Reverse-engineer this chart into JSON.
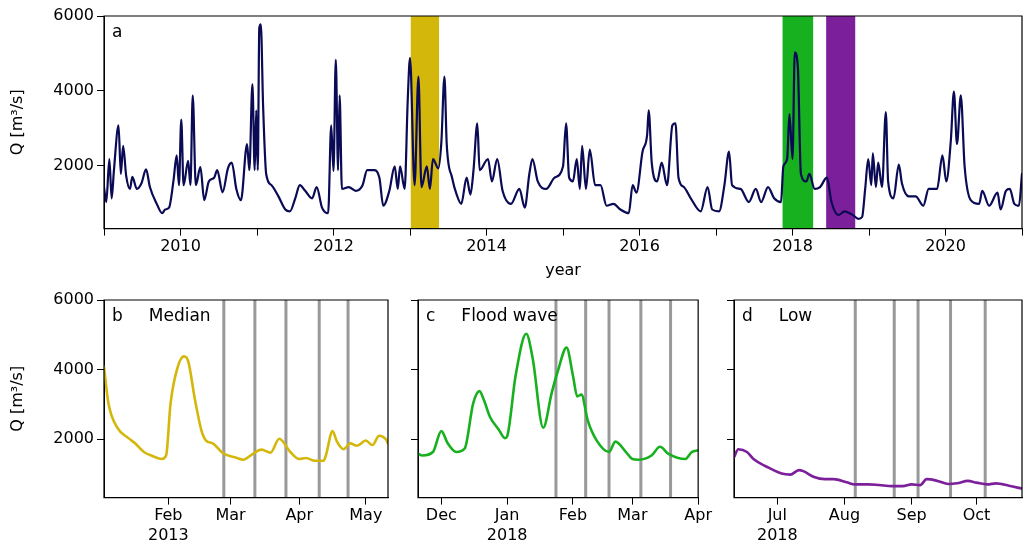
{
  "chart_data": [
    {
      "type": "line",
      "xlabel": "year",
      "ylabel": "Q [m³/s]",
      "annotations": [
        "a"
      ],
      "xlim": [
        2009,
        2021
      ],
      "xticks": [
        {
          "value": 2009,
          "label": null
        },
        2010,
        {
          "value": 2011,
          "label": null
        },
        2012,
        {
          "value": 2013,
          "label": null
        },
        2014,
        {
          "value": 2015,
          "label": null
        },
        2016,
        {
          "value": 2017,
          "label": null
        },
        2018,
        {
          "value": 2019,
          "label": null
        },
        2020,
        {
          "value": 2021,
          "label": null
        }
      ],
      "ylim": [
        320,
        6000
      ],
      "yticks": [
        2000,
        4000,
        6000
      ],
      "grid": false,
      "legend": false,
      "bands": [
        {
          "axis": "x",
          "from": 2013.01,
          "to": 2013.38,
          "color": "#d4b70b"
        },
        {
          "axis": "x",
          "from": 2017.87,
          "to": 2018.27,
          "color": "#17b01f"
        },
        {
          "axis": "x",
          "from": 2018.44,
          "to": 2018.82,
          "color": "#7b1f9a"
        }
      ],
      "series": [
        {
          "color": "#0a0a55",
          "x": [
            2009.0,
            2009.03,
            2009.07,
            2009.1,
            2009.13,
            2009.19,
            2009.22,
            2009.25,
            2009.29,
            2009.34,
            2009.37,
            2009.43,
            2009.49,
            2009.55,
            2009.6,
            2009.69,
            2009.76,
            2009.8,
            2009.85,
            2009.91,
            2009.95,
            2009.98,
            2010.01,
            2010.04,
            2010.1,
            2010.13,
            2010.16,
            2010.2,
            2010.26,
            2010.31,
            2010.37,
            2010.44,
            2010.48,
            2010.55,
            2010.62,
            2010.67,
            2010.73,
            2010.79,
            2010.87,
            2010.9,
            2010.94,
            2010.97,
            2010.99,
            2011.01,
            2011.03,
            2011.05,
            2011.08,
            2011.12,
            2011.19,
            2011.28,
            2011.37,
            2011.43,
            2011.5,
            2011.56,
            2011.63,
            2011.72,
            2011.78,
            2011.85,
            2011.93,
            2011.97,
            2012.0,
            2012.03,
            2012.06,
            2012.08,
            2012.11,
            2012.2,
            2012.29,
            2012.38,
            2012.44,
            2012.53,
            2012.6,
            2012.65,
            2012.73,
            2012.8,
            2012.84,
            2012.87,
            2012.93,
            2012.97,
            2013.0,
            2013.06,
            2013.11,
            2013.15,
            2013.22,
            2013.26,
            2013.3,
            2013.37,
            2013.41,
            2013.45,
            2013.48,
            2013.55,
            2013.61,
            2013.67,
            2013.74,
            2013.79,
            2013.83,
            2013.88,
            2013.91,
            2014.02,
            2014.07,
            2014.14,
            2014.21,
            2014.32,
            2014.43,
            2014.5,
            2014.56,
            2014.6,
            2014.67,
            2014.78,
            2014.89,
            2015.0,
            2015.04,
            2015.08,
            2015.13,
            2015.18,
            2015.22,
            2015.25,
            2015.3,
            2015.35,
            2015.42,
            2015.49,
            2015.57,
            2015.66,
            2015.75,
            2015.86,
            2015.91,
            2015.96,
            2016.04,
            2016.1,
            2016.12,
            2016.16,
            2016.23,
            2016.29,
            2016.36,
            2016.43,
            2016.47,
            2016.51,
            2016.58,
            2016.67,
            2016.8,
            2016.89,
            2016.95,
            2017.04,
            2017.11,
            2017.17,
            2017.21,
            2017.32,
            2017.43,
            2017.52,
            2017.59,
            2017.68,
            2017.76,
            2017.85,
            2017.88,
            2017.93,
            2017.96,
            2018.0,
            2018.03,
            2018.07,
            2018.11,
            2018.18,
            2018.22,
            2018.29,
            2018.36,
            2018.45,
            2018.51,
            2018.6,
            2018.68,
            2018.79,
            2018.86,
            2018.91,
            2018.95,
            2018.99,
            2019.03,
            2019.05,
            2019.09,
            2019.12,
            2019.17,
            2019.22,
            2019.25,
            2019.32,
            2019.39,
            2019.43,
            2019.52,
            2019.61,
            2019.71,
            2019.78,
            2019.89,
            2019.96,
            2020.01,
            2020.07,
            2020.11,
            2020.15,
            2020.2,
            2020.25,
            2020.33,
            2020.44,
            2020.48,
            2020.57,
            2020.68,
            2020.72,
            2020.79,
            2020.84,
            2020.9,
            2020.96,
            2021.0
          ],
          "values": [
            1430,
            1030,
            2180,
            1130,
            1880,
            3080,
            1780,
            2530,
            1730,
            1380,
            1700,
            1380,
            1530,
            1900,
            1430,
            980,
            730,
            830,
            880,
            1630,
            2280,
            1480,
            3230,
            1480,
            2130,
            1480,
            3880,
            1480,
            1960,
            1080,
            1580,
            1680,
            1880,
            1290,
            1930,
            2080,
            1380,
            1080,
            2580,
            1880,
            4180,
            1880,
            3480,
            1880,
            5680,
            5780,
            3580,
            1780,
            1480,
            1180,
            830,
            780,
            1130,
            1480,
            1330,
            1130,
            1430,
            880,
            730,
            3080,
            1860,
            4830,
            1880,
            3880,
            1380,
            1430,
            1330,
            1480,
            1880,
            1880,
            1680,
            930,
            1330,
            1980,
            1380,
            1980,
            1380,
            3730,
            4880,
            1480,
            4380,
            1430,
            1980,
            1380,
            2180,
            1930,
            2630,
            4380,
            2580,
            1680,
            1230,
            980,
            1680,
            1230,
            1880,
            3130,
            1880,
            2180,
            1580,
            2180,
            1330,
            980,
            1380,
            880,
            1780,
            2180,
            1580,
            1380,
            1680,
            1980,
            3130,
            1680,
            1580,
            2180,
            1380,
            2530,
            1380,
            2430,
            1480,
            1480,
            930,
            980,
            830,
            730,
            1480,
            1280,
            2380,
            2830,
            3480,
            2080,
            1580,
            2080,
            1480,
            3080,
            3130,
            1680,
            1430,
            1130,
            780,
            1430,
            830,
            780,
            1480,
            2380,
            1480,
            1380,
            1030,
            1380,
            1030,
            1430,
            1130,
            1030,
            1980,
            2180,
            3380,
            2180,
            5030,
            4630,
            1780,
            1580,
            1780,
            1380,
            1430,
            1680,
            1030,
            680,
            780,
            680,
            580,
            630,
            1380,
            2180,
            1480,
            2330,
            1430,
            2080,
            1430,
            3430,
            1580,
            1130,
            2030,
            1530,
            1180,
            1180,
            930,
            1380,
            1380,
            2280,
            1580,
            2680,
            3980,
            2580,
            3880,
            1980,
            1080,
            980,
            1330,
            930,
            1280,
            830,
            1330,
            1380,
            980,
            930,
            1780
          ]
        }
      ]
    },
    {
      "type": "line",
      "ylabel": "Q [m³/s]",
      "annotations": [
        "b",
        "Median"
      ],
      "xlim": [
        "2013-01-03",
        "2013-05-11"
      ],
      "xticks": [
        {
          "value": "2013-02-01",
          "label": "Feb\n2013"
        },
        {
          "value": "2013-03-01",
          "label": "Mar"
        },
        {
          "value": "2013-04-01",
          "label": "Apr"
        },
        {
          "value": "2013-05-01",
          "label": "May"
        }
      ],
      "ylim": [
        320,
        6000
      ],
      "yticks": [
        2000,
        4000,
        6000
      ],
      "grid": false,
      "legend": false,
      "ref_lines": [
        {
          "axis": "x",
          "value": "2013-02-26",
          "color": "#999999"
        },
        {
          "axis": "x",
          "value": "2013-03-12",
          "color": "#999999"
        },
        {
          "axis": "x",
          "value": "2013-03-26",
          "color": "#999999"
        },
        {
          "axis": "x",
          "value": "2013-04-10",
          "color": "#999999"
        },
        {
          "axis": "x",
          "value": "2013-04-23",
          "color": "#999999"
        }
      ],
      "series": [
        {
          "color": "#d4b70b",
          "x": [
            "2013-01-03",
            "2013-01-05",
            "2013-01-09",
            "2013-01-14",
            "2013-01-17",
            "2013-01-21",
            "2013-01-25",
            "2013-01-29",
            "2013-01-31",
            "2013-02-02",
            "2013-02-05",
            "2013-02-08",
            "2013-02-10",
            "2013-02-13",
            "2013-02-16",
            "2013-02-18",
            "2013-02-21",
            "2013-02-26",
            "2013-03-03",
            "2013-03-07",
            "2013-03-10",
            "2013-03-15",
            "2013-03-19",
            "2013-03-23",
            "2013-03-28",
            "2013-04-01",
            "2013-04-04",
            "2013-04-08",
            "2013-04-12",
            "2013-04-13",
            "2013-04-16",
            "2013-04-18",
            "2013-04-21",
            "2013-04-24",
            "2013-04-27",
            "2013-05-01",
            "2013-05-04",
            "2013-05-07",
            "2013-05-10",
            "2013-05-11"
          ],
          "values": [
            4080,
            3030,
            2330,
            2030,
            1880,
            1630,
            1510,
            1430,
            1530,
            3030,
            4030,
            4380,
            4230,
            3130,
            2230,
            1960,
            1880,
            1580,
            1480,
            1410,
            1530,
            1700,
            1610,
            2010,
            1630,
            1430,
            1460,
            1380,
            1380,
            1530,
            2230,
            1930,
            1710,
            1880,
            1810,
            1960,
            1830,
            2100,
            2000,
            1880
          ]
        }
      ]
    },
    {
      "type": "line",
      "annotations": [
        "c",
        "Flood wave"
      ],
      "tick_labels": "x",
      "xlim": [
        "2017-11-20",
        "2018-04-01"
      ],
      "xticks": [
        {
          "value": "2017-12-01",
          "label": "Dec"
        },
        {
          "value": "2018-01-01",
          "label": "Jan\n2018"
        },
        {
          "value": "2018-02-01",
          "label": "Feb"
        },
        {
          "value": "2018-03-01",
          "label": "Mar"
        },
        {
          "value": "2018-04-01",
          "label": "Apr"
        }
      ],
      "ylim": [
        320,
        6000
      ],
      "yticks": [
        2000,
        4000,
        6000
      ],
      "grid": false,
      "legend": false,
      "ref_lines": [
        {
          "axis": "x",
          "value": "2018-01-24",
          "color": "#999999"
        },
        {
          "axis": "x",
          "value": "2018-02-07",
          "color": "#999999"
        },
        {
          "axis": "x",
          "value": "2018-02-18",
          "color": "#999999"
        },
        {
          "axis": "x",
          "value": "2018-03-05",
          "color": "#999999"
        },
        {
          "axis": "x",
          "value": "2018-03-19",
          "color": "#999999"
        }
      ],
      "series": [
        {
          "color": "#17b01f",
          "x": [
            "2017-11-20",
            "2017-11-22",
            "2017-11-27",
            "2017-12-01",
            "2017-12-04",
            "2017-12-08",
            "2017-12-12",
            "2017-12-16",
            "2017-12-19",
            "2017-12-21",
            "2017-12-24",
            "2017-12-28",
            "2017-12-31",
            "2018-01-01",
            "2018-01-05",
            "2018-01-10",
            "2018-01-13",
            "2018-01-18",
            "2018-01-22",
            "2018-01-25",
            "2018-01-29",
            "2018-02-01",
            "2018-02-03",
            "2018-02-05",
            "2018-02-08",
            "2018-02-12",
            "2018-02-18",
            "2018-02-21",
            "2018-02-26",
            "2018-03-01",
            "2018-03-04",
            "2018-03-10",
            "2018-03-14",
            "2018-03-18",
            "2018-03-26",
            "2018-03-29",
            "2018-04-01"
          ],
          "values": [
            1580,
            1530,
            1630,
            2230,
            1880,
            1630,
            1730,
            3030,
            3380,
            3130,
            2630,
            2280,
            2030,
            2080,
            3830,
            5030,
            4330,
            2330,
            3330,
            3980,
            4630,
            3830,
            3230,
            3280,
            2530,
            1980,
            1630,
            1930,
            1630,
            1430,
            1410,
            1530,
            1780,
            1580,
            1430,
            1630,
            1680
          ]
        }
      ]
    },
    {
      "type": "line",
      "annotations": [
        "d",
        "Low"
      ],
      "tick_labels": "x",
      "xlim": [
        "2018-06-11",
        "2018-10-22"
      ],
      "xticks": [
        {
          "value": "2018-07-01",
          "label": "Jul\n2018"
        },
        {
          "value": "2018-08-01",
          "label": "Aug"
        },
        {
          "value": "2018-09-01",
          "label": "Sep"
        },
        {
          "value": "2018-10-01",
          "label": "Oct"
        }
      ],
      "ylim": [
        320,
        6000
      ],
      "yticks": [
        2000,
        4000,
        6000
      ],
      "grid": false,
      "legend": false,
      "ref_lines": [
        {
          "axis": "x",
          "value": "2018-08-06",
          "color": "#999999"
        },
        {
          "axis": "x",
          "value": "2018-08-24",
          "color": "#999999"
        },
        {
          "axis": "x",
          "value": "2018-09-04",
          "color": "#999999"
        },
        {
          "axis": "x",
          "value": "2018-09-19",
          "color": "#999999"
        },
        {
          "axis": "x",
          "value": "2018-10-05",
          "color": "#999999"
        }
      ],
      "series": [
        {
          "color": "#7b1f9a",
          "x": [
            "2018-06-11",
            "2018-06-13",
            "2018-06-17",
            "2018-06-20",
            "2018-06-27",
            "2018-07-03",
            "2018-07-07",
            "2018-07-11",
            "2018-07-13",
            "2018-07-18",
            "2018-07-23",
            "2018-07-27",
            "2018-08-02",
            "2018-08-06",
            "2018-08-12",
            "2018-08-17",
            "2018-08-23",
            "2018-08-28",
            "2018-09-01",
            "2018-09-05",
            "2018-09-08",
            "2018-09-13",
            "2018-09-18",
            "2018-09-22",
            "2018-09-27",
            "2018-10-01",
            "2018-10-06",
            "2018-10-10",
            "2018-10-16",
            "2018-10-22"
          ],
          "values": [
            1480,
            1710,
            1630,
            1430,
            1180,
            1010,
            980,
            1110,
            1080,
            910,
            850,
            850,
            760,
            700,
            700,
            680,
            650,
            650,
            700,
            680,
            850,
            800,
            710,
            730,
            800,
            750,
            700,
            730,
            660,
            580
          ]
        }
      ]
    }
  ]
}
